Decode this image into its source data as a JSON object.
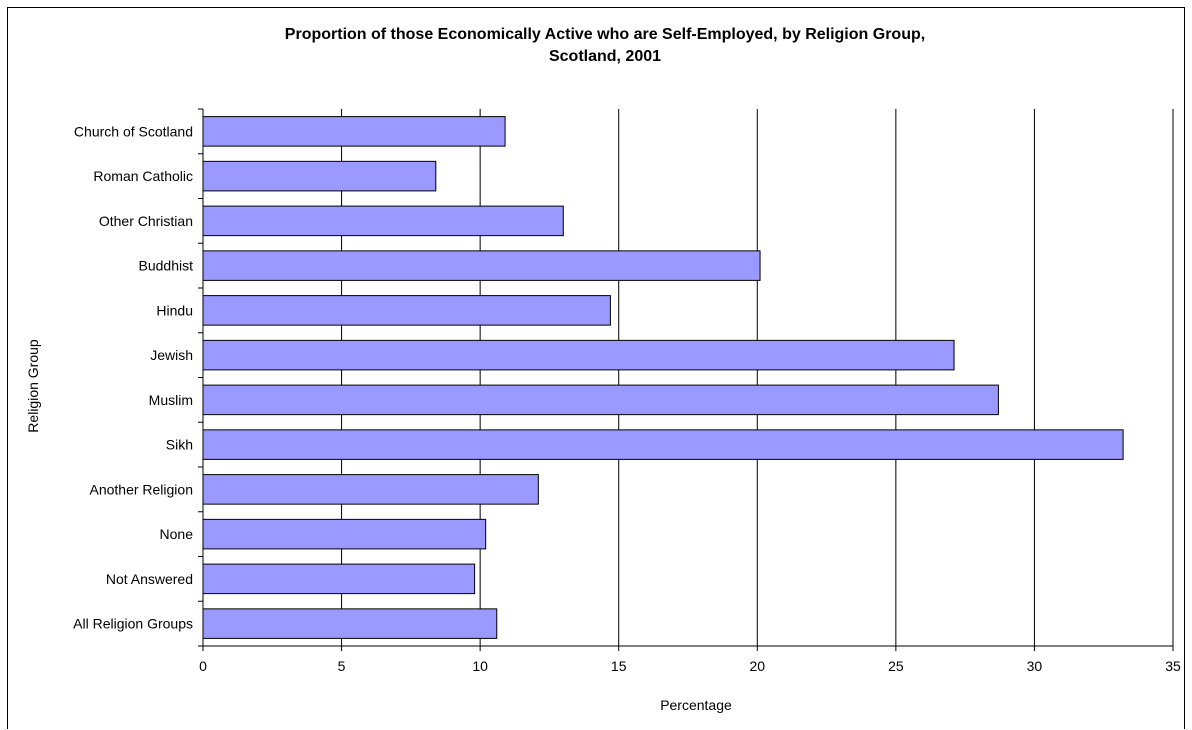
{
  "chart_data": {
    "type": "bar",
    "orientation": "horizontal",
    "title": "Proportion of those Economically Active who are Self-Employed, by Religion Group,",
    "title_line2": "Scotland, 2001",
    "xlabel": "Percentage",
    "ylabel": "Religion Group",
    "categories": [
      "Church of Scotland",
      "Roman Catholic",
      "Other Christian",
      "Buddhist",
      "Hindu",
      "Jewish",
      "Muslim",
      "Sikh",
      "Another Religion",
      "None",
      "Not Answered",
      "All Religion Groups"
    ],
    "values": [
      10.9,
      8.4,
      13.0,
      20.1,
      14.7,
      27.1,
      28.7,
      33.2,
      12.1,
      10.2,
      9.8,
      10.6
    ],
    "xlim": [
      0,
      35
    ],
    "xticks": [
      "0",
      "5",
      "10",
      "15",
      "20",
      "25",
      "30",
      "35"
    ],
    "grid": true,
    "legend": "none",
    "bar_color": "#9999ff",
    "bar_outline": "#000000"
  }
}
